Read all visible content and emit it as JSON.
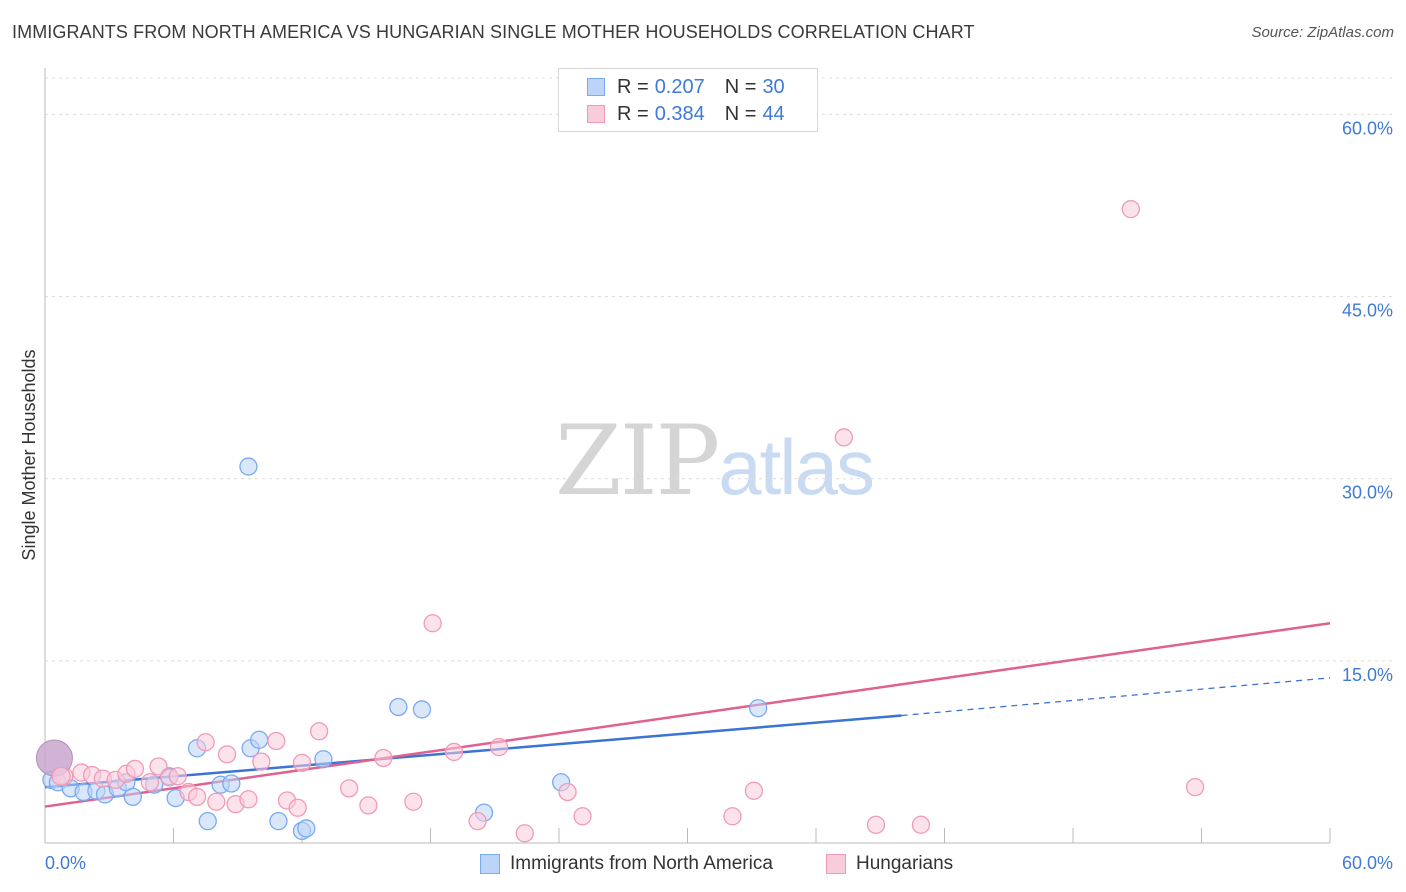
{
  "title": "IMMIGRANTS FROM NORTH AMERICA VS HUNGARIAN SINGLE MOTHER HOUSEHOLDS CORRELATION CHART",
  "source": "Source: ZipAtlas.com",
  "watermark": {
    "zip": "ZIP",
    "atlas": "atlas"
  },
  "legend": {
    "rows": [
      {
        "r_label": "R =",
        "r_value": "0.207",
        "n_label": "N =",
        "n_value": "30",
        "color": "#7aaaf0",
        "fill": "#bcd4f8"
      },
      {
        "r_label": "R =",
        "r_value": "0.384",
        "n_label": "N =",
        "n_value": "44",
        "color": "#f09ab8",
        "fill": "#f9ccdb"
      }
    ]
  },
  "bottom_legend": {
    "series_a": "Immigrants from North America",
    "series_b": "Hungarians"
  },
  "chart_data": {
    "type": "scatter",
    "title": "IMMIGRANTS FROM NORTH AMERICA VS HUNGARIAN SINGLE MOTHER HOUSEHOLDS CORRELATION CHART",
    "xlabel": "",
    "ylabel": "Single Mother Households",
    "xlim": [
      0,
      60
    ],
    "ylim": [
      0,
      63
    ],
    "x_tick_labels": {
      "min": "0.0%",
      "max": "60.0%"
    },
    "y_ticks": [
      15,
      30,
      45,
      60
    ],
    "y_tick_labels": [
      "15.0%",
      "30.0%",
      "45.0%",
      "60.0%"
    ],
    "grid": true,
    "series": [
      {
        "name": "Immigrants from North America",
        "color": "#3a74d4",
        "point_stroke": "#7aaaf0",
        "point_fill": "#bcd4f8",
        "points": [
          [
            0.3,
            5.2
          ],
          [
            0.6,
            5.0
          ],
          [
            1.2,
            4.5
          ],
          [
            1.8,
            4.2
          ],
          [
            2.4,
            4.3
          ],
          [
            2.8,
            4.0
          ],
          [
            3.4,
            4.5
          ],
          [
            3.8,
            5.0
          ],
          [
            4.1,
            3.8
          ],
          [
            5.1,
            4.8
          ],
          [
            5.8,
            5.5
          ],
          [
            6.1,
            3.7
          ],
          [
            7.1,
            7.8
          ],
          [
            7.6,
            1.8
          ],
          [
            8.2,
            4.8
          ],
          [
            8.7,
            4.9
          ],
          [
            9.5,
            31.0
          ],
          [
            9.6,
            7.8
          ],
          [
            10.0,
            8.5
          ],
          [
            10.9,
            1.8
          ],
          [
            12.0,
            1.0
          ],
          [
            12.2,
            1.2
          ],
          [
            13.0,
            6.9
          ],
          [
            16.5,
            11.2
          ],
          [
            17.6,
            11.0
          ],
          [
            20.5,
            2.5
          ],
          [
            24.1,
            5.0
          ],
          [
            33.3,
            11.1
          ]
        ],
        "big_point": [
          0.3,
          7.0
        ],
        "trend": {
          "x0": 0,
          "y0": 4.6,
          "x1": 40,
          "y1": 10.5,
          "dash_x1": 60,
          "dash_y1": 13.6
        }
      },
      {
        "name": "Hungarians",
        "color": "#e06090",
        "point_stroke": "#f09ab8",
        "point_fill": "#f9ccdb",
        "points": [
          [
            0.9,
            5.5
          ],
          [
            1.7,
            5.8
          ],
          [
            2.2,
            5.6
          ],
          [
            2.7,
            5.3
          ],
          [
            3.3,
            5.2
          ],
          [
            3.8,
            5.7
          ],
          [
            4.2,
            6.1
          ],
          [
            4.9,
            5.0
          ],
          [
            5.3,
            6.3
          ],
          [
            5.8,
            5.4
          ],
          [
            6.2,
            5.5
          ],
          [
            6.7,
            4.2
          ],
          [
            7.1,
            3.8
          ],
          [
            7.5,
            8.3
          ],
          [
            8.0,
            3.4
          ],
          [
            8.5,
            7.3
          ],
          [
            8.9,
            3.2
          ],
          [
            9.5,
            3.6
          ],
          [
            10.1,
            6.7
          ],
          [
            10.8,
            8.4
          ],
          [
            11.3,
            3.5
          ],
          [
            11.8,
            2.9
          ],
          [
            12.0,
            6.6
          ],
          [
            12.8,
            9.2
          ],
          [
            14.2,
            4.5
          ],
          [
            15.1,
            3.1
          ],
          [
            15.8,
            7.0
          ],
          [
            17.2,
            3.4
          ],
          [
            18.1,
            18.1
          ],
          [
            19.1,
            7.5
          ],
          [
            20.2,
            1.8
          ],
          [
            21.2,
            7.9
          ],
          [
            22.4,
            0.8
          ],
          [
            24.4,
            4.2
          ],
          [
            25.1,
            2.2
          ],
          [
            32.1,
            2.2
          ],
          [
            33.1,
            4.3
          ],
          [
            37.3,
            33.4
          ],
          [
            38.8,
            1.5
          ],
          [
            40.9,
            1.5
          ],
          [
            50.7,
            52.2
          ],
          [
            53.7,
            4.6
          ]
        ],
        "big_point": [
          0.1,
          5.5
        ],
        "trend": {
          "x0": 0,
          "y0": 3.0,
          "x1": 60,
          "y1": 18.1
        }
      }
    ]
  }
}
